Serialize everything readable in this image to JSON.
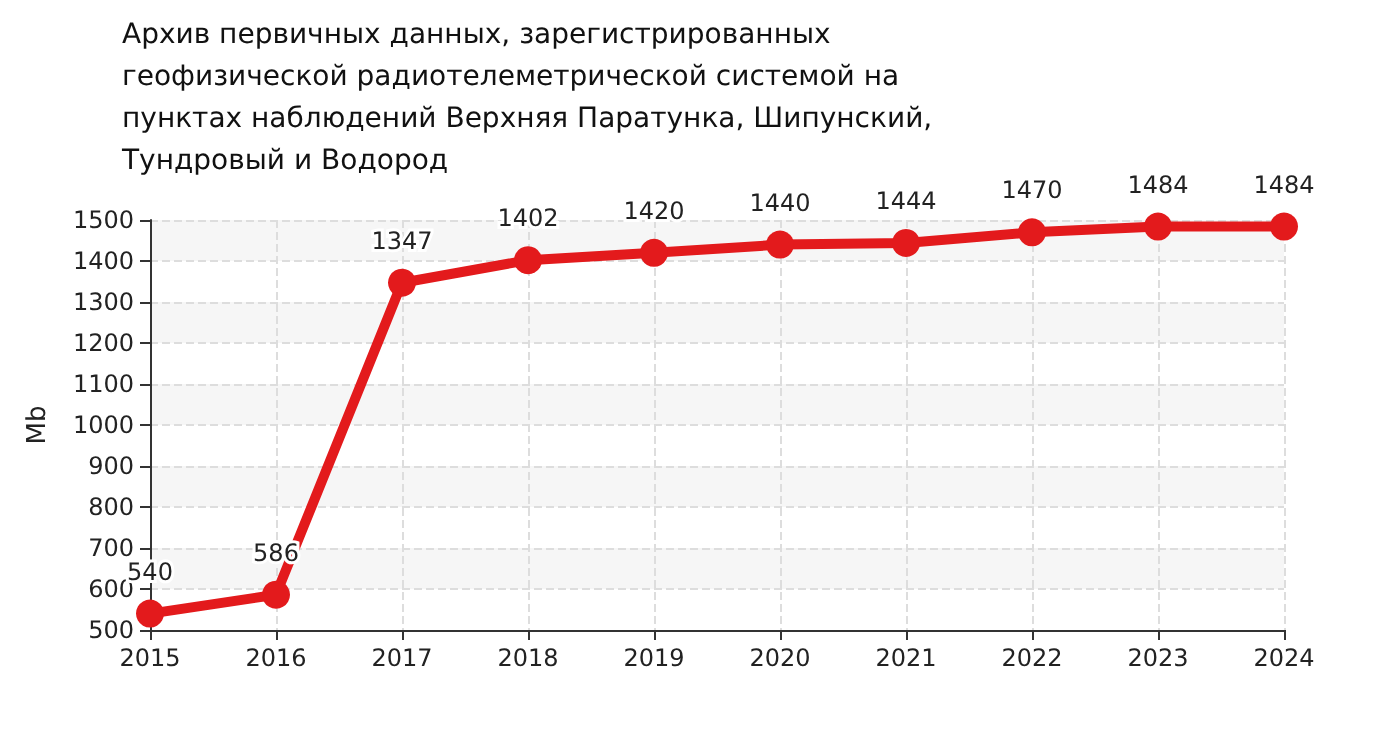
{
  "chart_data": {
    "type": "line",
    "title": "Архив первичных данных, зарегистрированных геофизической радиотелеметрической системой на пунктах наблюдений Верхняя Паратунка, Шипунский, Тундровый и Водород",
    "ylabel": "Mb",
    "categories": [
      "2015",
      "2016",
      "2017",
      "2018",
      "2019",
      "2020",
      "2021",
      "2022",
      "2023",
      "2024"
    ],
    "series": [
      {
        "color": "#e31a1c",
        "values": [
          540,
          586,
          1347,
          1402,
          1420,
          1440,
          1444,
          1470,
          1484,
          1484
        ]
      }
    ],
    "ylim": [
      500,
      1500
    ],
    "yticks": [
      500,
      600,
      700,
      800,
      900,
      1000,
      1100,
      1200,
      1300,
      1400,
      1500
    ],
    "grid": true,
    "marker": "circle",
    "line_style": "solid",
    "data_labels": true
  }
}
